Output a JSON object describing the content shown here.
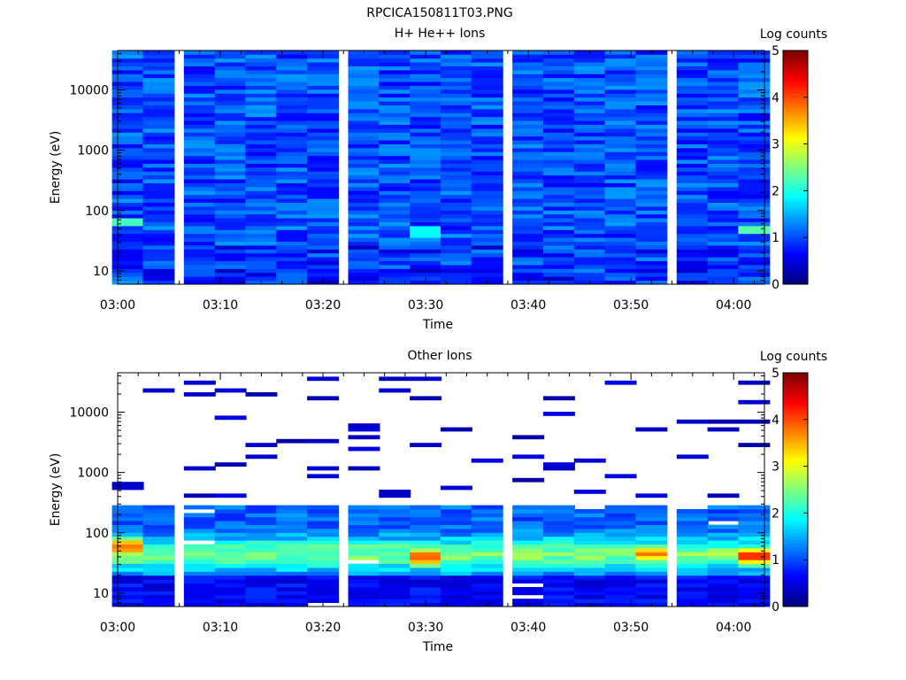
{
  "figure_title": "RPCICA150811T03.PNG",
  "chart_data": [
    {
      "type": "heatmap",
      "title": "H+ He++ Ions",
      "xlabel": "Time",
      "ylabel": "Energy (eV)",
      "x_ticks": [
        "03:00",
        "03:10",
        "03:20",
        "03:30",
        "03:40",
        "03:50",
        "04:00"
      ],
      "y_ticks": [
        "10",
        "100",
        "1000",
        "10000"
      ],
      "y_scale": "log",
      "ylim_ev": [
        6,
        45000
      ],
      "time_range": [
        "03:00",
        "04:03"
      ],
      "column_times": [
        "03:01",
        "03:04",
        "03:08",
        "03:11",
        "03:14",
        "03:17",
        "03:20",
        "03:24",
        "03:27",
        "03:30",
        "03:33",
        "03:36",
        "03:40",
        "03:43",
        "03:46",
        "03:49",
        "03:52",
        "03:56",
        "03:59",
        "04:02"
      ],
      "colorbar": {
        "label": "Log counts",
        "ticks": [
          "0",
          "1",
          "2",
          "3",
          "4",
          "5"
        ],
        "range": [
          0,
          5
        ],
        "colormap": "jet"
      },
      "pattern": "broadband moderate counts (log 0.7-1.6) across all energies; low-energy rows slightly darker; isolated cyan pixels near 60 eV at 03:01 and 04:02",
      "highlights": [
        {
          "time": "03:01",
          "energy_ev": 65,
          "log_counts": 2.2
        },
        {
          "time": "04:02",
          "energy_ev": 50,
          "log_counts": 2.3
        },
        {
          "time": "03:30",
          "energy_ev": 45,
          "log_counts": 1.9
        }
      ]
    },
    {
      "type": "heatmap",
      "title": "Other Ions",
      "xlabel": "Time",
      "ylabel": "Energy (eV)",
      "x_ticks": [
        "03:00",
        "03:10",
        "03:20",
        "03:30",
        "03:40",
        "03:50",
        "04:00"
      ],
      "y_ticks": [
        "10",
        "100",
        "1000",
        "10000"
      ],
      "y_scale": "log",
      "ylim_ev": [
        6,
        45000
      ],
      "time_range": [
        "03:00",
        "04:03"
      ],
      "colorbar": {
        "label": "Log counts",
        "ticks": [
          "0",
          "1",
          "2",
          "3",
          "4",
          "5"
        ],
        "range": [
          0,
          5
        ],
        "colormap": "jet"
      },
      "pattern": "sparse dark-blue single-count lines above ~300 eV; dense band 20-300 eV peaking near 40-70 eV; strongest at 03:01 and 04:02",
      "peak_profiles": [
        {
          "time": "03:01",
          "energy_ev": 60,
          "log_counts": 4.0
        },
        {
          "time": "03:30",
          "energy_ev": 40,
          "log_counts": 3.8
        },
        {
          "time": "03:52",
          "energy_ev": 45,
          "log_counts": 3.7
        },
        {
          "time": "04:02",
          "energy_ev": 42,
          "log_counts": 4.2
        }
      ]
    }
  ]
}
